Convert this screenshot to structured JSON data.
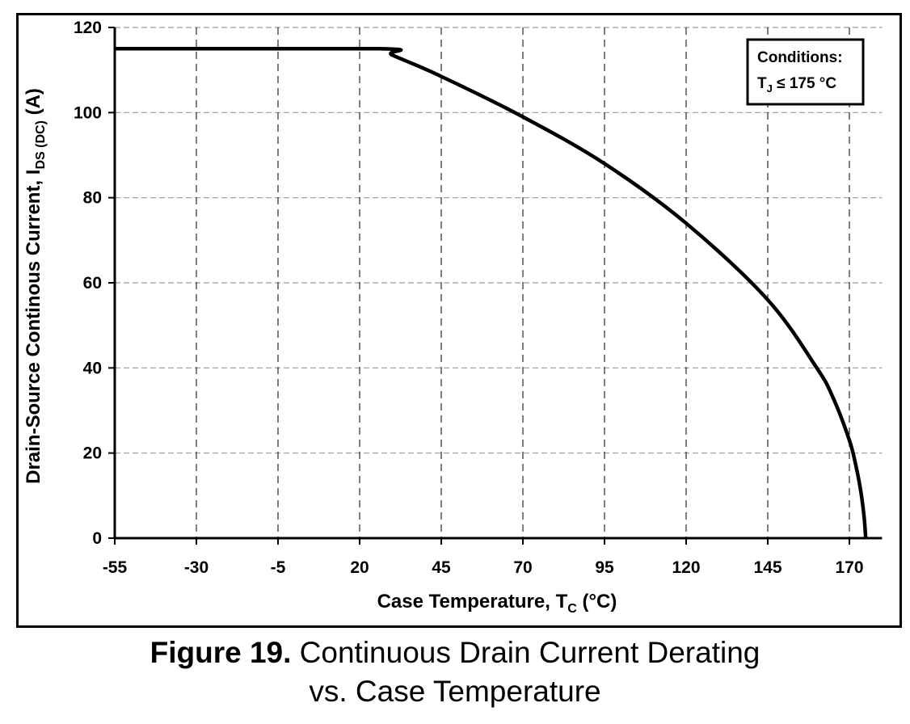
{
  "chart_data": {
    "type": "line",
    "xlabel": {
      "main": "Case Temperature, T",
      "sub": "C",
      "tail": " (°C)"
    },
    "ylabel": {
      "main": "Drain-Source Continous Current, I",
      "sub": "DS (DC)",
      "tail": " (A)"
    },
    "xlim": [
      -55,
      180
    ],
    "ylim": [
      0,
      120
    ],
    "xticks": [
      -55,
      -30,
      -5,
      20,
      45,
      70,
      95,
      120,
      145,
      170
    ],
    "yticks": [
      0,
      20,
      40,
      60,
      80,
      100,
      120
    ],
    "grid": true,
    "grid_style": "dashed",
    "line_color": "#000000",
    "series": [
      {
        "x": [
          -55,
          26,
          30,
          45,
          70,
          95,
          120,
          145,
          160,
          165,
          170,
          172,
          173.5,
          174.5,
          175
        ],
        "y": [
          115,
          115,
          113.5,
          108.5,
          99,
          88,
          74,
          56,
          40,
          33,
          23,
          17,
          11,
          5,
          0
        ]
      }
    ],
    "annotation": {
      "title": "Conditions:",
      "line_main": "T",
      "line_sub": "J",
      "line_tail": " ≤ 175 °C",
      "position": "top-right"
    }
  },
  "caption": {
    "number": "Figure 19.",
    "line1": " Continuous Drain Current Derating",
    "line2": "vs. Case Temperature"
  }
}
